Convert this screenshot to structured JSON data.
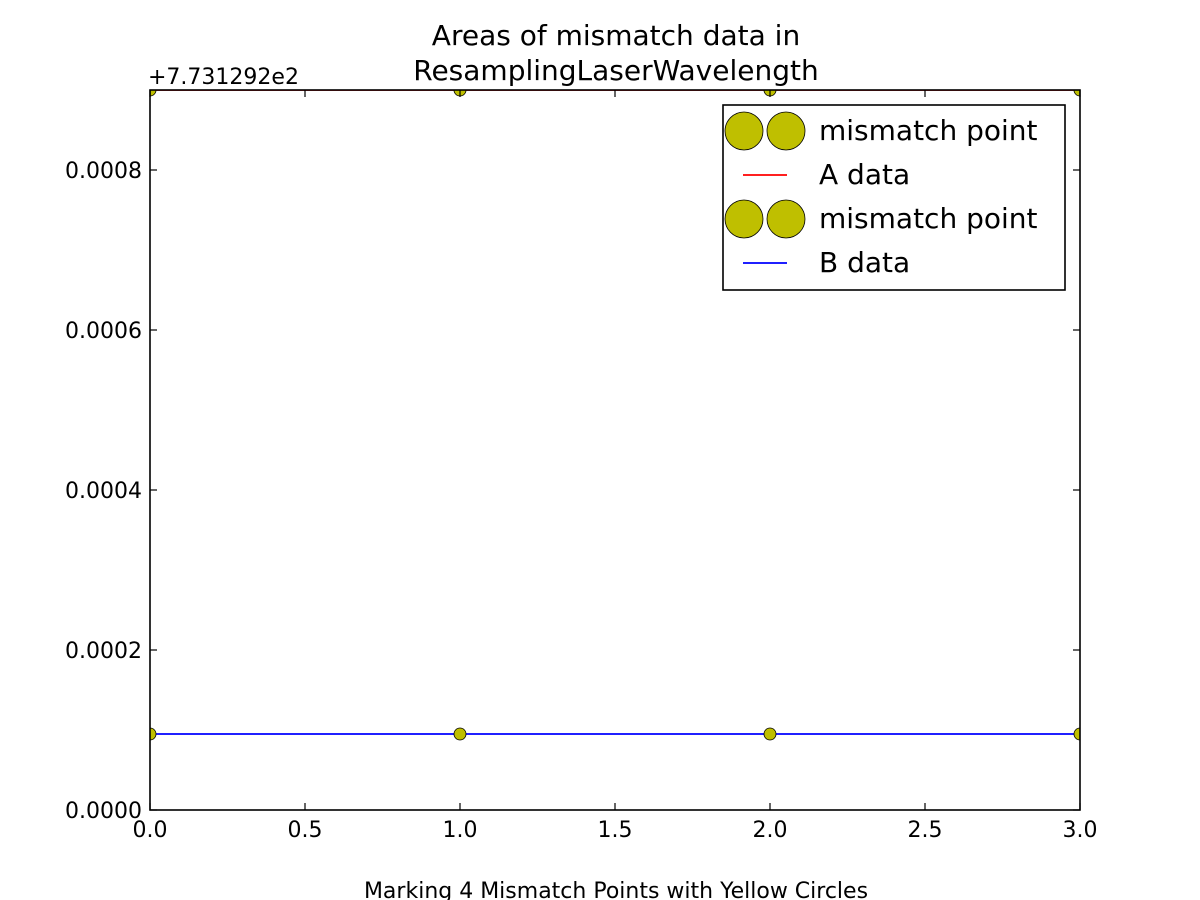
{
  "chart_data": {
    "type": "line",
    "title_line1": "Areas of mismatch data in",
    "title_line2": "ResamplingLaserWavelength",
    "xlabel": "Marking 4 Mismatch Points with Yellow Circles",
    "ylabel": "",
    "offset_label": "+7.731292e2",
    "xlim": [
      0.0,
      3.0
    ],
    "ylim": [
      0.0,
      0.0009
    ],
    "x_ticks": [
      "0.0",
      "0.5",
      "1.0",
      "1.5",
      "2.0",
      "2.5",
      "3.0"
    ],
    "y_ticks": [
      "0.0000",
      "0.0002",
      "0.0004",
      "0.0006",
      "0.0008"
    ],
    "x_tick_values": [
      0.0,
      0.5,
      1.0,
      1.5,
      2.0,
      2.5,
      3.0
    ],
    "y_tick_values": [
      0.0,
      0.0002,
      0.0004,
      0.0006,
      0.0008
    ],
    "grid": false,
    "legend_position": "top-right",
    "series": [
      {
        "name": "A data",
        "x": [
          0,
          1,
          2,
          3
        ],
        "values": [
          0.0009,
          0.0009,
          0.0009,
          0.0009
        ],
        "color": "#ff0000"
      },
      {
        "name": "B data",
        "x": [
          0,
          1,
          2,
          3
        ],
        "values": [
          9.5e-05,
          9.5e-05,
          9.5e-05,
          9.5e-05
        ],
        "color": "#0000ff"
      }
    ],
    "mismatch_points": [
      {
        "name": "mismatch point",
        "x": [
          0,
          1,
          2,
          3
        ],
        "values": [
          0.0009,
          0.0009,
          0.0009,
          0.0009
        ],
        "color": "#bfbf00"
      },
      {
        "name": "mismatch point",
        "x": [
          0,
          1,
          2,
          3
        ],
        "values": [
          9.5e-05,
          9.5e-05,
          9.5e-05,
          9.5e-05
        ],
        "color": "#bfbf00"
      }
    ],
    "legend": [
      {
        "label": "mismatch point",
        "kind": "marker",
        "color": "#bfbf00"
      },
      {
        "label": "A data",
        "kind": "line",
        "color": "#ff0000"
      },
      {
        "label": "mismatch point",
        "kind": "marker",
        "color": "#bfbf00"
      },
      {
        "label": "B data",
        "kind": "line",
        "color": "#0000ff"
      }
    ]
  }
}
